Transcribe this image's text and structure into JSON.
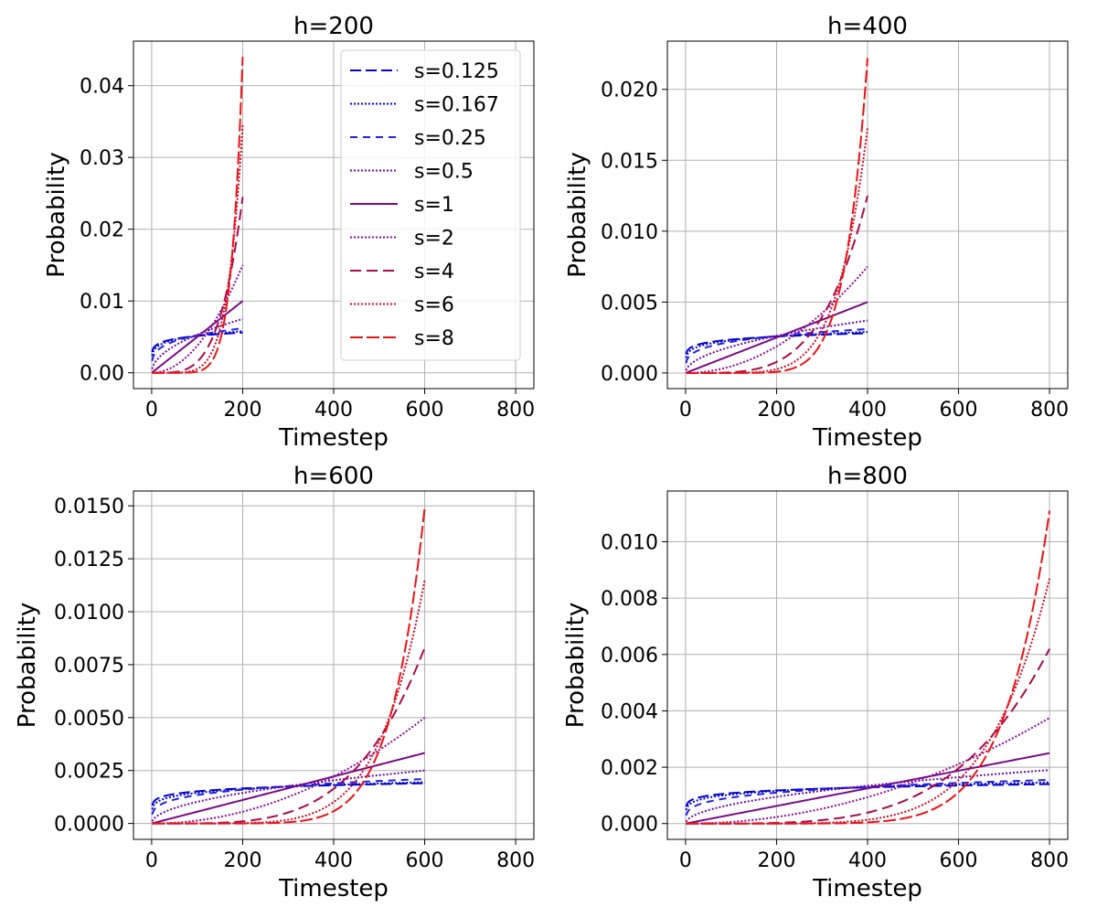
{
  "figure": {
    "series_styles": [
      {
        "name": "s=0.125",
        "s": 0.125,
        "color": "#0000cc",
        "dash": "12,5"
      },
      {
        "name": "s=0.167",
        "s": 0.167,
        "color": "#0000dd",
        "dash": "2,2"
      },
      {
        "name": "s=0.25",
        "s": 0.25,
        "color": "#2222dd",
        "dash": "8,6"
      },
      {
        "name": "s=0.5",
        "s": 0.5,
        "color": "#6a0b9c",
        "dash": "2,2"
      },
      {
        "name": "s=1",
        "s": 1,
        "color": "#7a0a8a",
        "dash": ""
      },
      {
        "name": "s=2",
        "s": 2,
        "color": "#8a0a9a",
        "dash": "2,2"
      },
      {
        "name": "s=4",
        "s": 4,
        "color": "#aa0a4a",
        "dash": "12,6"
      },
      {
        "name": "s=6",
        "s": 6,
        "color": "#cc0a2a",
        "dash": "2,2"
      },
      {
        "name": "s=8",
        "s": 8,
        "color": "#ee1111",
        "dash": "14,4"
      }
    ]
  },
  "chart_data": [
    {
      "type": "line",
      "title": "h=200",
      "xlabel": "Timestep",
      "ylabel": "Probability",
      "h": 200,
      "xlim": [
        -40,
        840
      ],
      "ylim": [
        -0.0022,
        0.0462
      ],
      "xticks": [
        0,
        200,
        400,
        600,
        800
      ],
      "yticks": [
        0,
        0.01,
        0.02,
        0.03,
        0.04
      ],
      "ytick_labels": [
        "0.00",
        "0.01",
        "0.02",
        "0.03",
        "0.04"
      ],
      "grid": true,
      "legend": "upper right",
      "series_end_values": {
        "s=0.125": 0.0056,
        "s=0.167": 0.0058,
        "s=0.25": 0.0062,
        "s=0.5": 0.0075,
        "s=1": 0.01,
        "s=2": 0.015,
        "s=4": 0.0245,
        "s=6": 0.0345,
        "s=8": 0.044
      }
    },
    {
      "type": "line",
      "title": "h=400",
      "xlabel": "Timestep",
      "ylabel": "Probability",
      "h": 400,
      "xlim": [
        -40,
        840
      ],
      "ylim": [
        -0.0011,
        0.0234
      ],
      "xticks": [
        0,
        200,
        400,
        600,
        800
      ],
      "yticks": [
        0,
        0.005,
        0.01,
        0.015,
        0.02
      ],
      "ytick_labels": [
        "0.000",
        "0.005",
        "0.010",
        "0.015",
        "0.020"
      ],
      "grid": true,
      "legend": "none",
      "series_end_values": {
        "s=0.125": 0.0028,
        "s=0.167": 0.0029,
        "s=0.25": 0.0031,
        "s=0.5": 0.0037,
        "s=1": 0.005,
        "s=2": 0.0075,
        "s=4": 0.0125,
        "s=6": 0.0173,
        "s=8": 0.0222
      }
    },
    {
      "type": "line",
      "title": "h=600",
      "xlabel": "Timestep",
      "ylabel": "Probability",
      "h": 600,
      "xlim": [
        -40,
        840
      ],
      "ylim": [
        -0.00075,
        0.0157
      ],
      "xticks": [
        0,
        200,
        400,
        600,
        800
      ],
      "yticks": [
        0,
        0.0025,
        0.005,
        0.0075,
        0.01,
        0.0125,
        0.015
      ],
      "ytick_labels": [
        "0.0000",
        "0.0025",
        "0.0050",
        "0.0075",
        "0.0100",
        "0.0125",
        "0.0150"
      ],
      "grid": true,
      "legend": "none",
      "series_end_values": {
        "s=0.125": 0.0019,
        "s=0.167": 0.00195,
        "s=0.25": 0.0021,
        "s=0.5": 0.0025,
        "s=1": 0.00333,
        "s=2": 0.005,
        "s=4": 0.0083,
        "s=6": 0.0115,
        "s=8": 0.0149
      }
    },
    {
      "type": "line",
      "title": "h=800",
      "xlabel": "Timestep",
      "ylabel": "Probability",
      "h": 800,
      "xlim": [
        -40,
        840
      ],
      "ylim": [
        -0.00056,
        0.0118
      ],
      "xticks": [
        0,
        200,
        400,
        600,
        800
      ],
      "yticks": [
        0,
        0.002,
        0.004,
        0.006,
        0.008,
        0.01
      ],
      "ytick_labels": [
        "0.000",
        "0.002",
        "0.004",
        "0.006",
        "0.008",
        "0.010"
      ],
      "grid": true,
      "legend": "none",
      "series_end_values": {
        "s=0.125": 0.0014,
        "s=0.167": 0.00146,
        "s=0.25": 0.00155,
        "s=0.5": 0.0019,
        "s=1": 0.0025,
        "s=2": 0.00375,
        "s=4": 0.0062,
        "s=6": 0.0087,
        "s=8": 0.0111
      }
    }
  ]
}
